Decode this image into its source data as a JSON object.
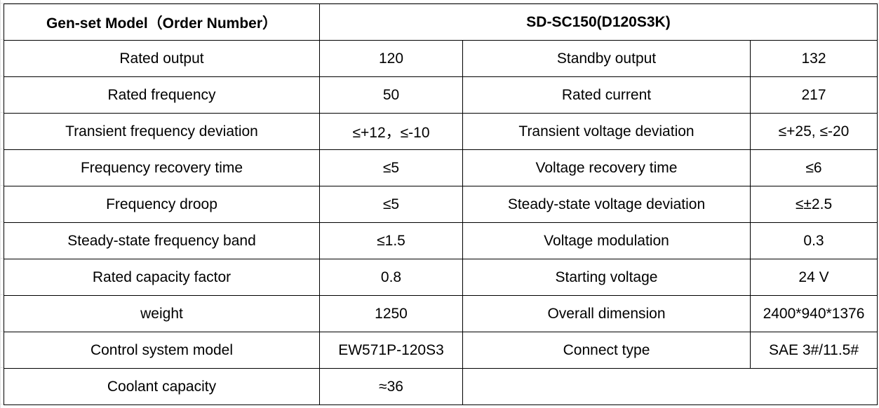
{
  "table": {
    "header": [
      "Gen-set Model（Order Number）",
      "SD-SC150(D120S3K)"
    ],
    "rows": [
      [
        "Rated output",
        "120",
        "Standby output",
        "132"
      ],
      [
        "Rated frequency",
        "50",
        "Rated current",
        "217"
      ],
      [
        "Transient frequency deviation",
        "≤+12，≤-10",
        "Transient voltage deviation",
        "≤+25, ≤-20"
      ],
      [
        "Frequency recovery time",
        "≤5",
        "Voltage recovery time",
        "≤6"
      ],
      [
        "Frequency droop",
        "≤5",
        "Steady-state voltage deviation",
        "≤±2.5"
      ],
      [
        "Steady-state frequency band",
        "≤1.5",
        "Voltage modulation",
        "0.3"
      ],
      [
        "Rated capacity factor",
        "0.8",
        "Starting voltage",
        "24 V"
      ],
      [
        "weight",
        "1250",
        "Overall dimension",
        "2400*940*1376"
      ],
      [
        "Control system model",
        "EW571P-120S3",
        "Connect type",
        "SAE 3#/11.5#"
      ],
      [
        "Coolant capacity",
        "≈36"
      ]
    ]
  }
}
